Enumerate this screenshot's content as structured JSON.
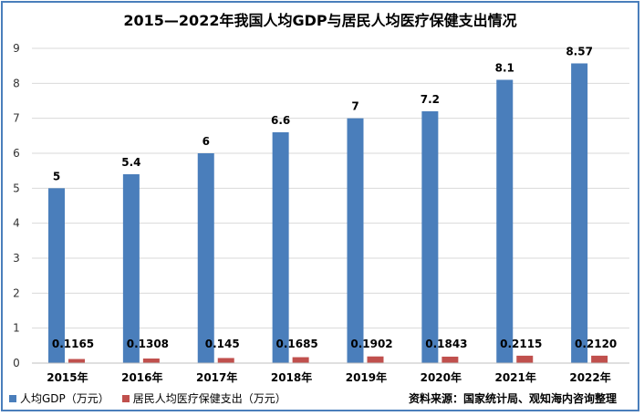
{
  "chart_data": {
    "type": "bar",
    "title": "2015—2022年我国人均GDP与居民人均医疗保健支出情况",
    "categories": [
      "2015年",
      "2016年",
      "2017年",
      "2018年",
      "2019年",
      "2020年",
      "2021年",
      "2022年"
    ],
    "series": [
      {
        "name": "人均GDP（万元）",
        "color": "#4a7ebb",
        "values": [
          5,
          5.4,
          6,
          6.6,
          7,
          7.2,
          8.1,
          8.57
        ],
        "labels": [
          "5",
          "5.4",
          "6",
          "6.6",
          "7",
          "7.2",
          "8.1",
          "8.57"
        ]
      },
      {
        "name": "居民人均医疗保健支出（万元）",
        "color": "#c0504d",
        "values": [
          0.1165,
          0.1308,
          0.145,
          0.1685,
          0.1902,
          0.1843,
          0.2115,
          0.212
        ],
        "labels": [
          "0.1165",
          "0.1308",
          "0.145",
          "0.1685",
          "0.1902",
          "0.1843",
          "0.2115",
          "0.2120"
        ]
      }
    ],
    "ylim": [
      0,
      9
    ],
    "yticks": [
      "0",
      "1",
      "2",
      "3",
      "4",
      "5",
      "6",
      "7",
      "8",
      "9"
    ],
    "grid": true,
    "legend_position": "bottom-left"
  },
  "source": "资料来源：国家统计局、观知海内咨询整理"
}
